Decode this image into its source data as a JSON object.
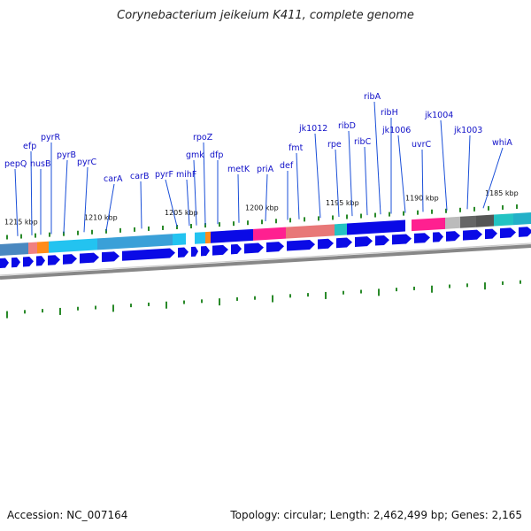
{
  "title": "Corynebacterium jeikeium K411, complete genome",
  "accession": "Accession: NC_007164",
  "summary": "Topology: circular; Length: 2,462,499 bp; Genes: 2,165",
  "colors": {
    "cds": "#0a0ae6",
    "leader": "#1a4fd8",
    "tick": "#2a8a2a",
    "label": "#1010c8",
    "backbone": "#888888"
  },
  "scale_labels": [
    "1215 kbp",
    "1210 kbp",
    "1205 kbp",
    "1200 kbp",
    "1195 kbp",
    "1190 kbp",
    "1185 kbp"
  ],
  "gene_labels": [
    "pepQ",
    "efp",
    "nusB",
    "pyrR",
    "pyrB",
    "pyrC",
    "carA",
    "carB",
    "pyrF",
    "mihF",
    "gmk",
    "rpoZ",
    "dfp",
    "metK",
    "priA",
    "def",
    "fmt",
    "jk1012",
    "rpe",
    "ribD",
    "ribC",
    "ribA",
    "ribH",
    "jk1006",
    "uvrC",
    "jk1004",
    "jk1003",
    "whiA"
  ]
}
